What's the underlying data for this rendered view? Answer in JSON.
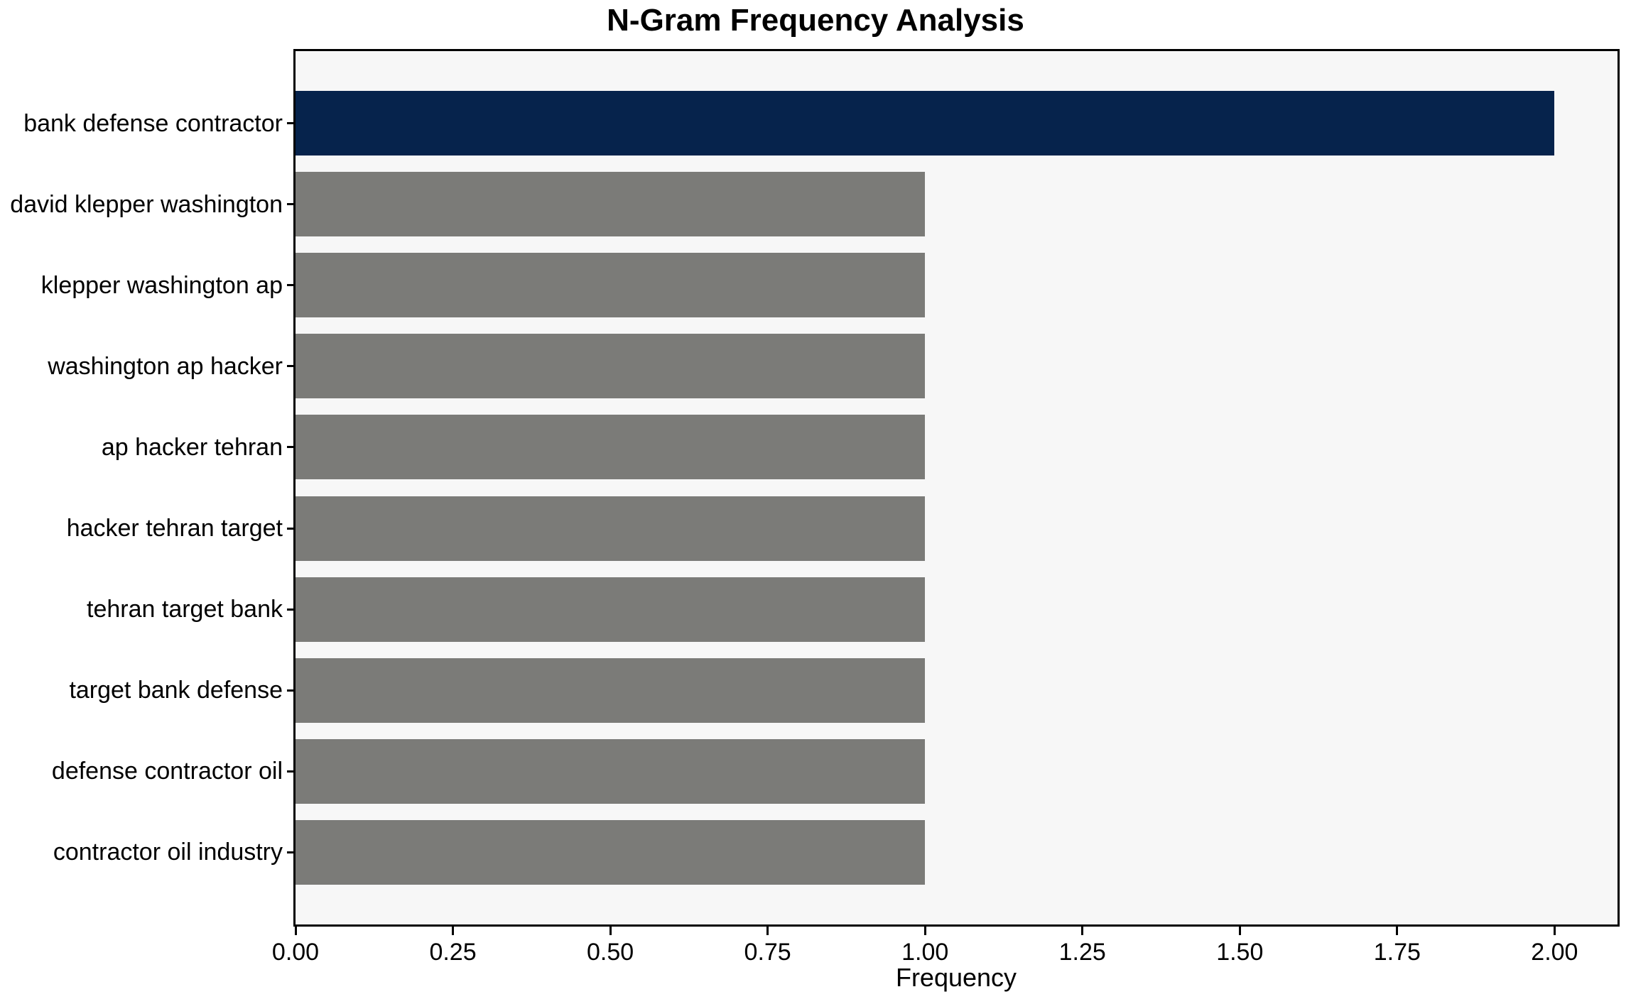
{
  "chart_data": {
    "type": "bar",
    "orientation": "horizontal",
    "title": "N-Gram Frequency Analysis",
    "xlabel": "Frequency",
    "ylabel": "",
    "categories": [
      "bank defense contractor",
      "david klepper washington",
      "klepper washington ap",
      "washington ap hacker",
      "ap hacker tehran",
      "hacker tehran target",
      "tehran target bank",
      "target bank defense",
      "defense contractor oil",
      "contractor oil industry"
    ],
    "values": [
      2,
      1,
      1,
      1,
      1,
      1,
      1,
      1,
      1,
      1
    ],
    "highlight_index": 0,
    "xlim": [
      0,
      2.1
    ],
    "xticks": [
      {
        "value": 0.0,
        "label": "0.00"
      },
      {
        "value": 0.25,
        "label": "0.25"
      },
      {
        "value": 0.5,
        "label": "0.50"
      },
      {
        "value": 0.75,
        "label": "0.75"
      },
      {
        "value": 1.0,
        "label": "1.00"
      },
      {
        "value": 1.25,
        "label": "1.25"
      },
      {
        "value": 1.5,
        "label": "1.50"
      },
      {
        "value": 1.75,
        "label": "1.75"
      },
      {
        "value": 2.0,
        "label": "2.00"
      }
    ],
    "grid": false,
    "legend": null,
    "colors": {
      "highlight_bar": "#06234c",
      "default_bar": "#7b7b78",
      "plot_background": "#f7f7f7",
      "figure_background": "#ffffff",
      "axis": "#000000",
      "text": "#000000"
    }
  }
}
